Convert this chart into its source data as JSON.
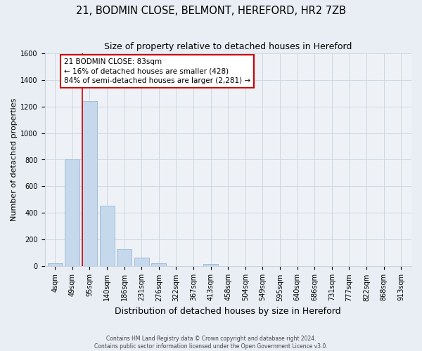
{
  "title": "21, BODMIN CLOSE, BELMONT, HEREFORD, HR2 7ZB",
  "subtitle": "Size of property relative to detached houses in Hereford",
  "xlabel": "Distribution of detached houses by size in Hereford",
  "ylabel": "Number of detached properties",
  "bar_labels": [
    "4sqm",
    "49sqm",
    "95sqm",
    "140sqm",
    "186sqm",
    "231sqm",
    "276sqm",
    "322sqm",
    "367sqm",
    "413sqm",
    "458sqm",
    "504sqm",
    "549sqm",
    "595sqm",
    "640sqm",
    "686sqm",
    "731sqm",
    "777sqm",
    "822sqm",
    "868sqm",
    "913sqm"
  ],
  "bar_values": [
    25,
    800,
    1240,
    455,
    130,
    65,
    25,
    0,
    0,
    20,
    0,
    0,
    0,
    0,
    0,
    0,
    0,
    0,
    0,
    0,
    0
  ],
  "bar_color": "#c5d8ec",
  "bar_edge_color": "#9ab8d4",
  "property_line_color": "#cc0000",
  "annotation_line1": "21 BODMIN CLOSE: 83sqm",
  "annotation_line2": "← 16% of detached houses are smaller (428)",
  "annotation_line3": "84% of semi-detached houses are larger (2,281) →",
  "annotation_box_color": "#ffffff",
  "annotation_box_edge": "#cc0000",
  "ylim": [
    0,
    1600
  ],
  "yticks": [
    0,
    200,
    400,
    600,
    800,
    1000,
    1200,
    1400,
    1600
  ],
  "footer1": "Contains HM Land Registry data © Crown copyright and database right 2024.",
  "footer2": "Contains public sector information licensed under the Open Government Licence v3.0.",
  "bg_color": "#e8eef4",
  "plot_bg_color": "#eef2f7",
  "grid_color": "#c8d4e0",
  "title_fontsize": 10.5,
  "subtitle_fontsize": 9,
  "ylabel_fontsize": 8,
  "xlabel_fontsize": 9,
  "tick_fontsize": 7,
  "footer_fontsize": 5.5
}
